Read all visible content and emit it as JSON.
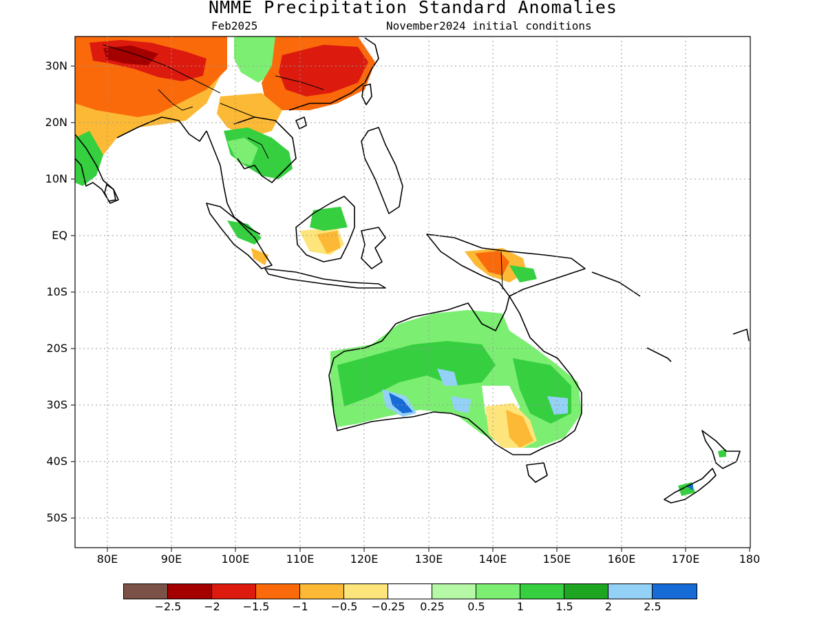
{
  "title": "NMME Precipitation Standard Anomalies",
  "subtitle_left": "Feb2025",
  "subtitle_right": "November2024 initial conditions",
  "lat_labels": [
    "30N",
    "20N",
    "10N",
    "EQ",
    "10S",
    "20S",
    "30S",
    "40S",
    "50S"
  ],
  "lon_labels": [
    "80E",
    "90E",
    "100E",
    "110E",
    "120E",
    "130E",
    "140E",
    "150E",
    "160E",
    "170E",
    "180"
  ],
  "colorbar": {
    "colors": [
      "#7b5247",
      "#a40000",
      "#dd1a0e",
      "#fa6a0a",
      "#fcb935",
      "#fde57c",
      "#ffffff",
      "#b5f8a6",
      "#7cee72",
      "#35cf3f",
      "#1ea623",
      "#94d1f6",
      "#166bd6"
    ],
    "labels": [
      "-2.5",
      "-2",
      "-1.5",
      "-1",
      "-0.5",
      "-0.25",
      "0.25",
      "0.5",
      "1",
      "1.5",
      "2",
      "2.5"
    ]
  },
  "map": {
    "extent": {
      "lon": [
        75,
        180
      ],
      "lat": [
        -55,
        35
      ]
    },
    "regions": [
      {
        "name": "north-india-dry",
        "color": "#fa6a0a"
      },
      {
        "name": "tibet-very-dry",
        "color": "#dd1a0e"
      },
      {
        "name": "southern-china-very-dry",
        "color": "#dd1a0e"
      },
      {
        "name": "indochina-wet",
        "color": "#35cf3f"
      },
      {
        "name": "australia-wet",
        "color": "#35cf3f"
      },
      {
        "name": "southeast-australia-dry",
        "color": "#fcb935"
      },
      {
        "name": "new-guinea-dry",
        "color": "#fa6a0a"
      }
    ]
  }
}
